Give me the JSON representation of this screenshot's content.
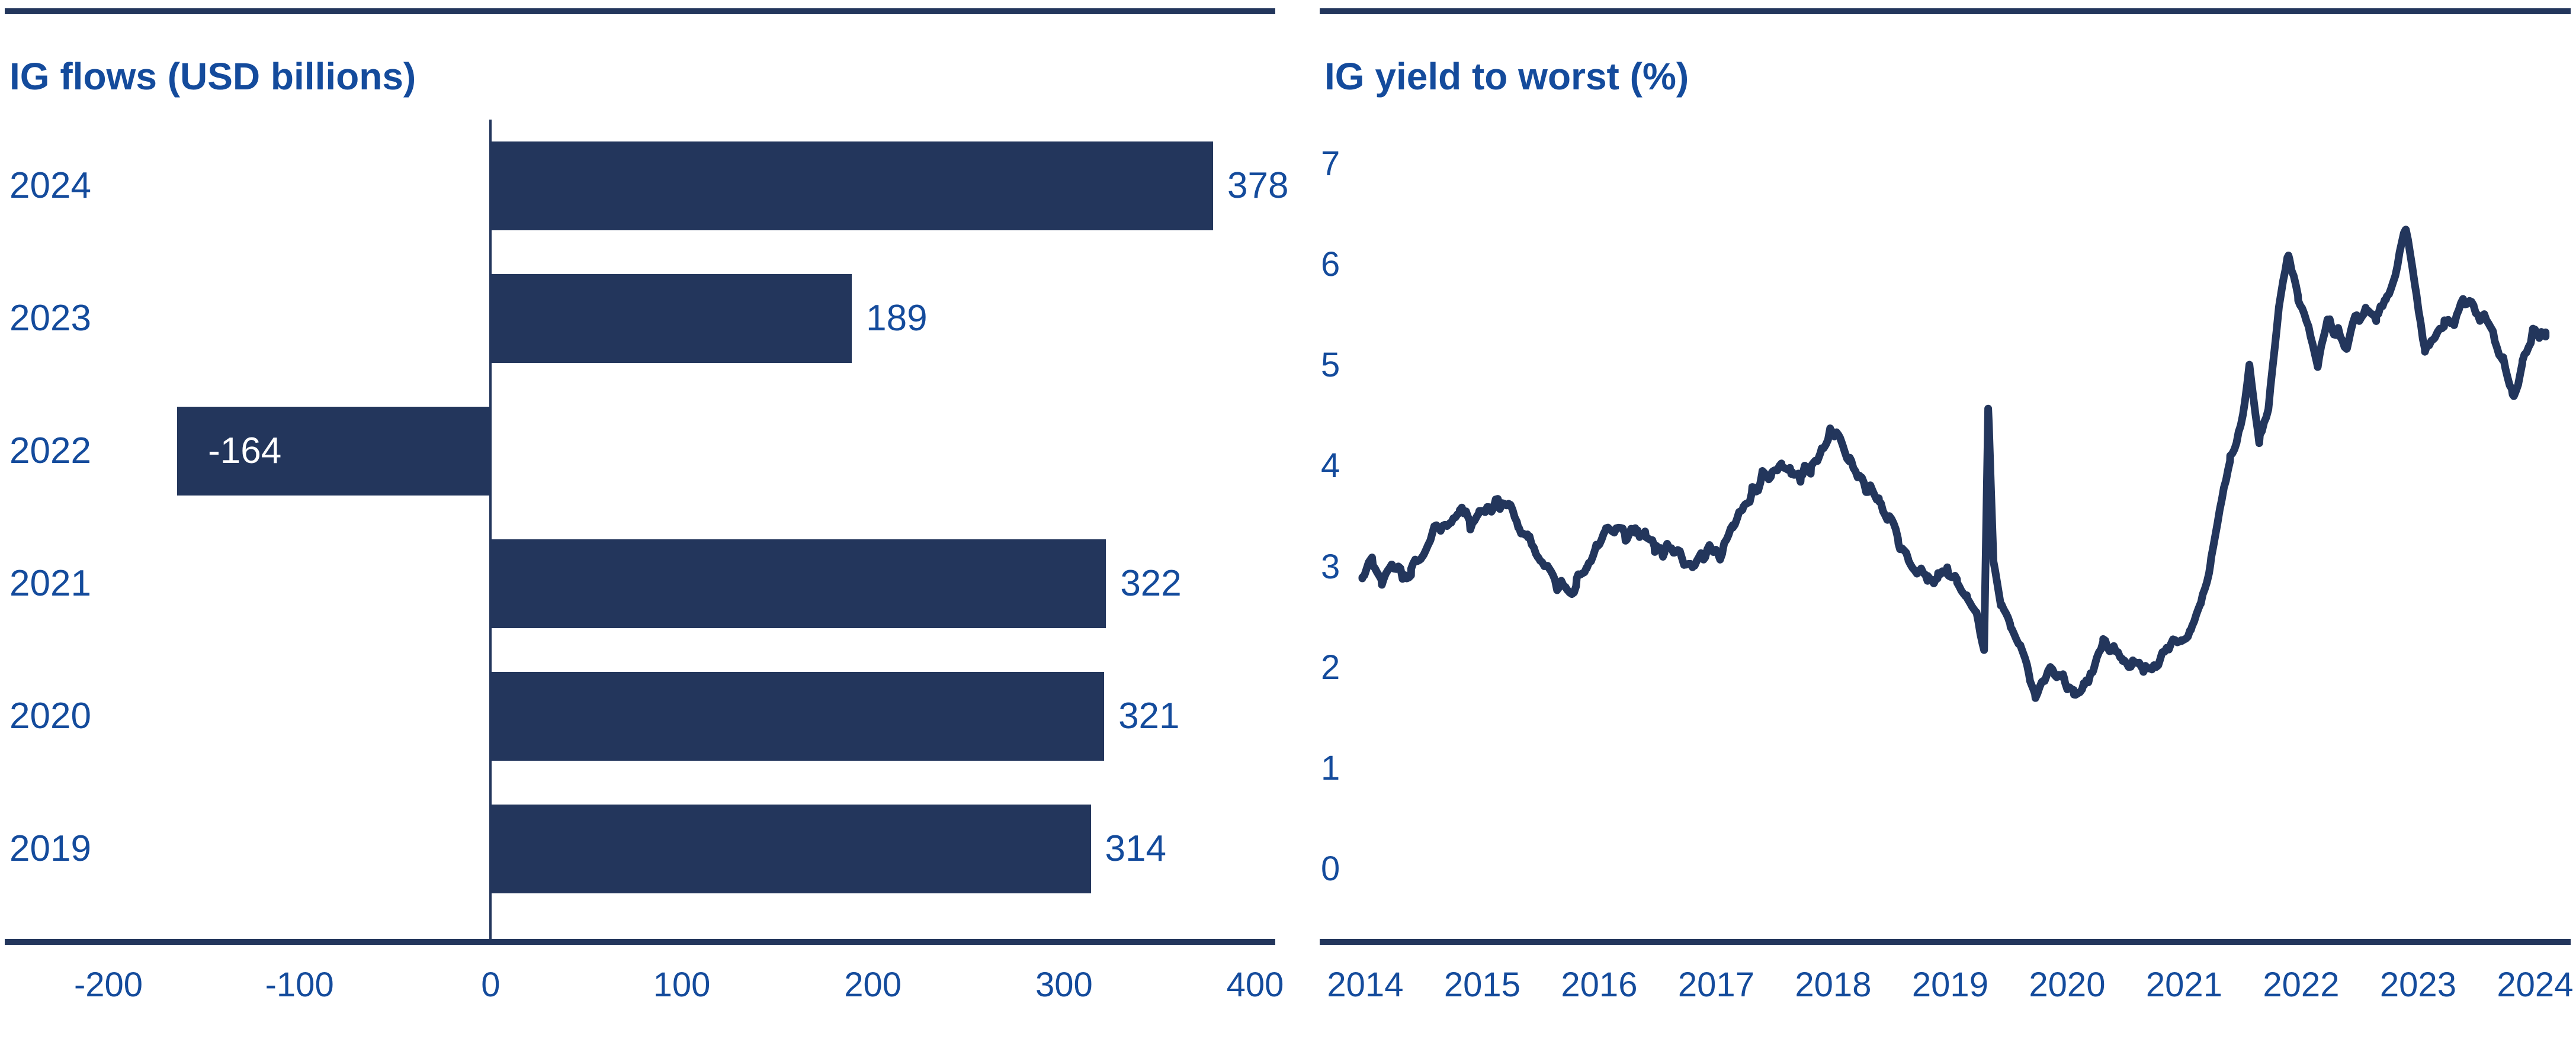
{
  "colors": {
    "navy": "#23365C",
    "blue": "#144B9C",
    "negative_label": "#FFFFFF",
    "background": "#FFFFFF"
  },
  "chart_data": [
    {
      "type": "bar",
      "orientation": "horizontal",
      "title": "IG flows (USD billions)",
      "categories": [
        "2024",
        "2023",
        "2022",
        "2021",
        "2020",
        "2019"
      ],
      "values": [
        378,
        189,
        -164,
        322,
        321,
        314
      ],
      "value_labels": [
        "378",
        "189",
        "-164",
        "322",
        "321",
        "314"
      ],
      "x_ticks": [
        -200,
        -100,
        0,
        100,
        200,
        300,
        400
      ],
      "x_tick_labels": [
        "-200",
        "-100",
        "0",
        "100",
        "200",
        "300",
        "400"
      ],
      "xlim": [
        -200,
        400
      ],
      "grid": false,
      "legend": "none",
      "xlabel": "",
      "ylabel": ""
    },
    {
      "type": "line",
      "title": "IG yield to worst (%)",
      "y_ticks": [
        7,
        6,
        5,
        4,
        3,
        2,
        1,
        0
      ],
      "ylim": [
        0,
        7
      ],
      "x_tick_labels": [
        "2014",
        "2015",
        "2016",
        "2017",
        "2018",
        "2019",
        "2020",
        "2021",
        "2022",
        "2023",
        "2024"
      ],
      "grid": false,
      "legend": "none",
      "xlabel": "",
      "ylabel": "",
      "series": [
        {
          "name": "IG yield to worst",
          "points": [
            [
              2014.875,
              2.95
            ],
            [
              2014.958,
              3.08
            ],
            [
              2015.042,
              2.87
            ],
            [
              2015.125,
              3.02
            ],
            [
              2015.208,
              2.98
            ],
            [
              2015.292,
              2.93
            ],
            [
              2015.375,
              3.1
            ],
            [
              2015.458,
              3.28
            ],
            [
              2015.542,
              3.38
            ],
            [
              2015.625,
              3.45
            ],
            [
              2015.708,
              3.6
            ],
            [
              2015.792,
              3.48
            ],
            [
              2015.875,
              3.55
            ],
            [
              2015.958,
              3.62
            ],
            [
              2016.042,
              3.66
            ],
            [
              2016.125,
              3.6
            ],
            [
              2016.208,
              3.42
            ],
            [
              2016.292,
              3.25
            ],
            [
              2016.375,
              3.12
            ],
            [
              2016.458,
              3.0
            ],
            [
              2016.542,
              2.78
            ],
            [
              2016.625,
              2.82
            ],
            [
              2016.708,
              2.88
            ],
            [
              2016.792,
              2.94
            ],
            [
              2016.875,
              3.22
            ],
            [
              2016.958,
              3.38
            ],
            [
              2017.042,
              3.36
            ],
            [
              2017.125,
              3.3
            ],
            [
              2017.208,
              3.38
            ],
            [
              2017.292,
              3.27
            ],
            [
              2017.375,
              3.2
            ],
            [
              2017.458,
              3.16
            ],
            [
              2017.542,
              3.2
            ],
            [
              2017.625,
              3.1
            ],
            [
              2017.708,
              3.08
            ],
            [
              2017.792,
              3.12
            ],
            [
              2017.875,
              3.14
            ],
            [
              2017.958,
              3.2
            ],
            [
              2018.042,
              3.36
            ],
            [
              2018.125,
              3.58
            ],
            [
              2018.208,
              3.72
            ],
            [
              2018.292,
              3.84
            ],
            [
              2018.375,
              3.94
            ],
            [
              2018.458,
              4.0
            ],
            [
              2018.542,
              3.94
            ],
            [
              2018.625,
              3.88
            ],
            [
              2018.708,
              3.98
            ],
            [
              2018.792,
              4.12
            ],
            [
              2018.875,
              4.3
            ],
            [
              2018.958,
              4.24
            ],
            [
              2019.042,
              4.04
            ],
            [
              2019.125,
              3.88
            ],
            [
              2019.208,
              3.72
            ],
            [
              2019.292,
              3.62
            ],
            [
              2019.375,
              3.55
            ],
            [
              2019.458,
              3.22
            ],
            [
              2019.542,
              3.14
            ],
            [
              2019.625,
              2.88
            ],
            [
              2019.708,
              2.94
            ],
            [
              2019.792,
              2.92
            ],
            [
              2019.875,
              2.92
            ],
            [
              2019.958,
              2.86
            ],
            [
              2020.042,
              2.72
            ],
            [
              2020.125,
              2.52
            ],
            [
              2020.19,
              2.18
            ],
            [
              2020.225,
              4.55
            ],
            [
              2020.27,
              3.05
            ],
            [
              2020.333,
              2.62
            ],
            [
              2020.417,
              2.4
            ],
            [
              2020.5,
              2.18
            ],
            [
              2020.583,
              1.92
            ],
            [
              2020.625,
              1.74
            ],
            [
              2020.708,
              1.9
            ],
            [
              2020.792,
              1.92
            ],
            [
              2020.875,
              1.82
            ],
            [
              2020.958,
              1.76
            ],
            [
              2021.042,
              1.88
            ],
            [
              2021.125,
              1.98
            ],
            [
              2021.208,
              2.28
            ],
            [
              2021.292,
              2.22
            ],
            [
              2021.375,
              2.15
            ],
            [
              2021.458,
              2.06
            ],
            [
              2021.542,
              1.96
            ],
            [
              2021.625,
              1.95
            ],
            [
              2021.708,
              2.1
            ],
            [
              2021.792,
              2.24
            ],
            [
              2021.875,
              2.26
            ],
            [
              2021.958,
              2.35
            ],
            [
              2022.042,
              2.6
            ],
            [
              2022.125,
              3.05
            ],
            [
              2022.208,
              3.62
            ],
            [
              2022.292,
              4.02
            ],
            [
              2022.375,
              4.34
            ],
            [
              2022.458,
              4.95
            ],
            [
              2022.542,
              4.25
            ],
            [
              2022.625,
              4.62
            ],
            [
              2022.708,
              5.55
            ],
            [
              2022.792,
              6.1
            ],
            [
              2022.875,
              5.65
            ],
            [
              2022.958,
              5.4
            ],
            [
              2023.042,
              5.02
            ],
            [
              2023.125,
              5.38
            ],
            [
              2023.208,
              5.32
            ],
            [
              2023.292,
              5.18
            ],
            [
              2023.375,
              5.45
            ],
            [
              2023.458,
              5.52
            ],
            [
              2023.542,
              5.45
            ],
            [
              2023.625,
              5.65
            ],
            [
              2023.708,
              5.92
            ],
            [
              2023.792,
              6.4
            ],
            [
              2023.875,
              5.78
            ],
            [
              2023.958,
              5.12
            ],
            [
              2024.042,
              5.28
            ],
            [
              2024.125,
              5.45
            ],
            [
              2024.208,
              5.42
            ],
            [
              2024.292,
              5.62
            ],
            [
              2024.375,
              5.52
            ],
            [
              2024.458,
              5.48
            ],
            [
              2024.542,
              5.32
            ],
            [
              2024.625,
              5.05
            ],
            [
              2024.708,
              4.68
            ],
            [
              2024.792,
              5.02
            ],
            [
              2024.875,
              5.28
            ],
            [
              2024.99,
              5.32
            ]
          ]
        }
      ],
      "render": {
        "jitter_amplitude": 0.3,
        "samples": 560,
        "seed": 11
      }
    }
  ]
}
